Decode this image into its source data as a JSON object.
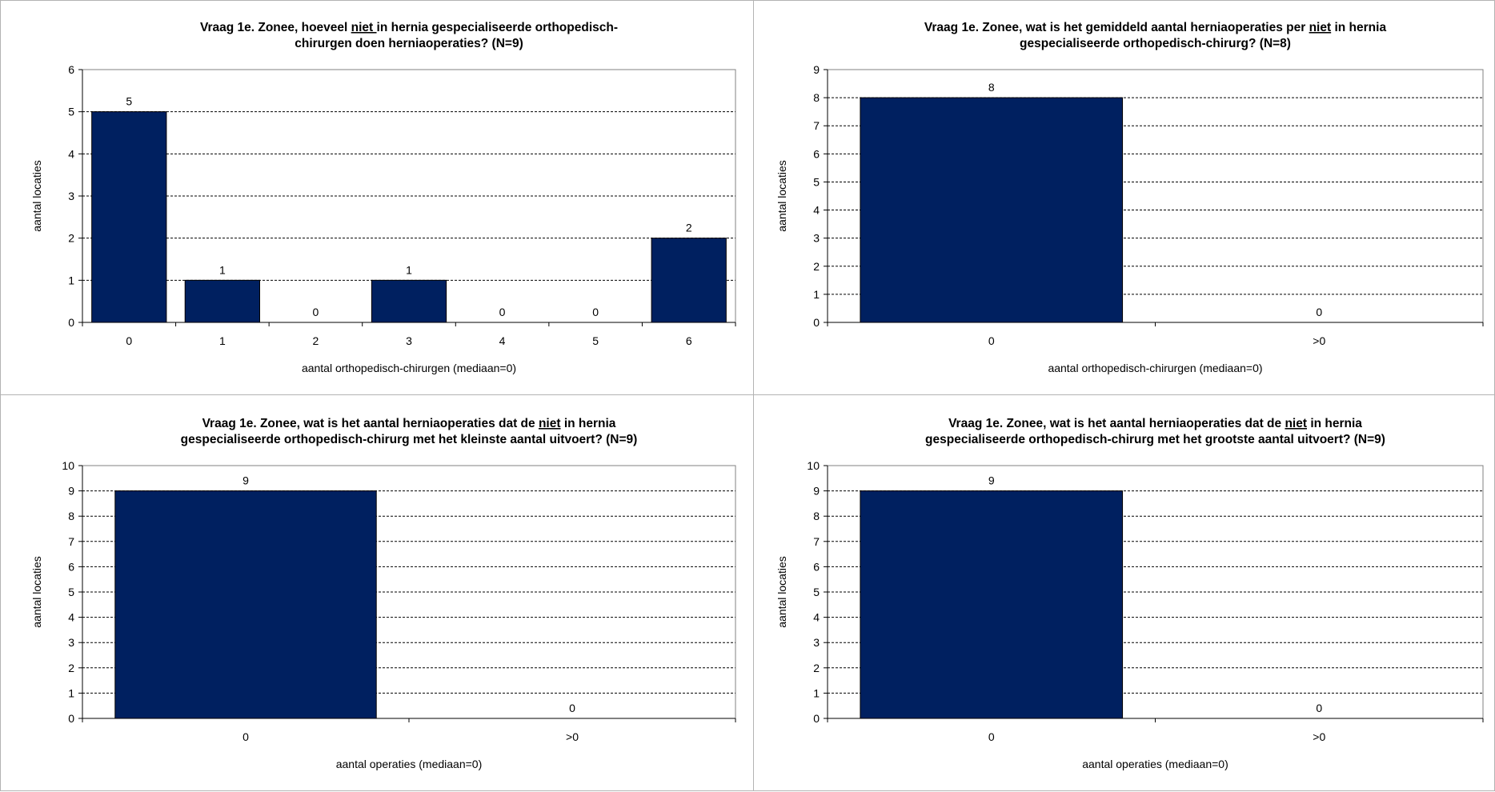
{
  "chart_data": [
    {
      "type": "bar",
      "title_parts": [
        "Vraag 1e. Zonee, hoeveel ",
        "niet ",
        "in hernia gespecialiseerde orthopedisch-"
      ],
      "title_line2": "chirurgen doen herniaoperaties? (N=9)",
      "categories": [
        "0",
        "1",
        "2",
        "3",
        "4",
        "5",
        "6"
      ],
      "values": [
        5,
        1,
        0,
        1,
        0,
        0,
        2
      ],
      "xlabel": "aantal orthopedisch-chirurgen (mediaan=0)",
      "ylabel": "aantal locaties",
      "ylim": [
        0,
        6
      ],
      "yticks": [
        "0",
        "1",
        "2",
        "3",
        "4",
        "5",
        "6"
      ],
      "grid": true,
      "bar_color": "#002060"
    },
    {
      "type": "bar",
      "title_parts": [
        "Vraag 1e. Zonee, wat is het gemiddeld aantal herniaoperaties per ",
        "niet",
        " in hernia"
      ],
      "title_line2": "gespecialiseerde orthopedisch-chirurg? (N=8)",
      "categories": [
        "0",
        ">0"
      ],
      "values": [
        8,
        0
      ],
      "xlabel": "aantal orthopedisch-chirurgen (mediaan=0)",
      "ylabel": "aantal locaties",
      "ylim": [
        0,
        9
      ],
      "yticks": [
        "0",
        "1",
        "2",
        "3",
        "4",
        "5",
        "6",
        "7",
        "8",
        "9"
      ],
      "grid": true,
      "bar_color": "#002060"
    },
    {
      "type": "bar",
      "title_parts": [
        "Vraag 1e. Zonee, wat is het aantal herniaoperaties dat de ",
        "niet",
        " in hernia"
      ],
      "title_line2": "gespecialiseerde orthopedisch-chirurg met het kleinste aantal uitvoert? (N=9)",
      "categories": [
        "0",
        ">0"
      ],
      "values": [
        9,
        0
      ],
      "xlabel": "aantal operaties (mediaan=0)",
      "ylabel": "aantal locaties",
      "ylim": [
        0,
        10
      ],
      "yticks": [
        "0",
        "1",
        "2",
        "3",
        "4",
        "5",
        "6",
        "7",
        "8",
        "9",
        "10"
      ],
      "grid": true,
      "bar_color": "#002060"
    },
    {
      "type": "bar",
      "title_parts": [
        "Vraag 1e. Zonee, wat is het aantal herniaoperaties dat de ",
        "niet",
        " in hernia"
      ],
      "title_line2": "gespecialiseerde orthopedisch-chirurg met het grootste aantal uitvoert? (N=9)",
      "categories": [
        "0",
        ">0"
      ],
      "values": [
        9,
        0
      ],
      "xlabel": "aantal operaties (mediaan=0)",
      "ylabel": "aantal locaties",
      "ylim": [
        0,
        10
      ],
      "yticks": [
        "0",
        "1",
        "2",
        "3",
        "4",
        "5",
        "6",
        "7",
        "8",
        "9",
        "10"
      ],
      "grid": true,
      "bar_color": "#002060"
    }
  ]
}
